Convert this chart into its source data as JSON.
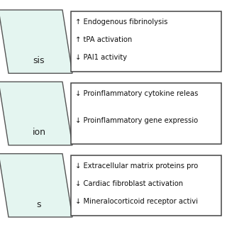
{
  "bg_color": "#ffffff",
  "parallelogram_fill": "#e4f5f0",
  "parallelogram_edge": "#555555",
  "box_fill": "#ffffff",
  "box_edge": "#444444",
  "rows": [
    {
      "label": "sis",
      "box_lines": [
        "↑ Endogenous fibrinolysis",
        "↑ tPA activation",
        "↓ PAI1 activity"
      ]
    },
    {
      "label": "ion",
      "box_lines": [
        "↓ Proinflammatory cytokine releas",
        "↓ Proinflammatory gene expressio"
      ]
    },
    {
      "label": "s",
      "box_lines": [
        "↓ Extracellular matrix proteins pro",
        "↓ Cardiac fibroblast activation",
        "↓ Mineralocorticoid receptor activi"
      ]
    }
  ],
  "fontsize": 7.2,
  "label_fontsize": 9.0,
  "fig_width": 3.2,
  "fig_height": 3.2,
  "dpi": 100
}
